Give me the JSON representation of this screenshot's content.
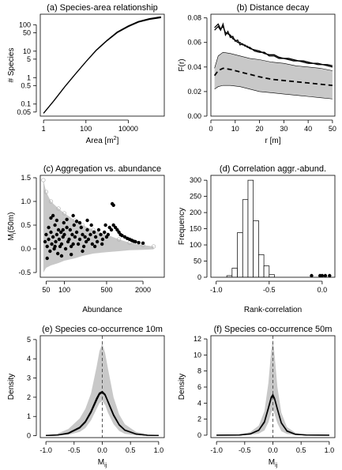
{
  "chart_data": [
    {
      "id": "a",
      "type": "line",
      "title": "(a) Species-area relationship",
      "xlabel": "Area",
      "xlabel_unit": "[m",
      "xlabel_sup": "2",
      "xlabel_close": "]",
      "ylabel": "# Species",
      "xscale": "log",
      "yscale": "log",
      "xlim": [
        0.7,
        500000
      ],
      "ylim": [
        0.035,
        250
      ],
      "xticks": [
        1,
        100,
        10000
      ],
      "xtick_labels": [
        "1",
        "100",
        "10000"
      ],
      "yticks": [
        0.05,
        0.1,
        0.5,
        1,
        5,
        10,
        50,
        100
      ],
      "ytick_labels": [
        "0.05",
        "0.1",
        "0.5",
        "1",
        "5",
        "10",
        "50",
        "100"
      ],
      "series": [
        {
          "x": [
            1,
            3,
            10,
            30,
            100,
            300,
            1000,
            3000,
            10000,
            30000,
            100000,
            350000
          ],
          "y": [
            0.045,
            0.13,
            0.45,
            1.3,
            4.0,
            10.5,
            25,
            50,
            85,
            125,
            160,
            185
          ]
        },
        {
          "x": [
            1,
            3,
            10,
            30,
            100,
            300,
            1000,
            3000,
            10000,
            30000,
            100000,
            350000
          ],
          "y": [
            0.045,
            0.13,
            0.45,
            1.3,
            4.0,
            10.8,
            26,
            53,
            90,
            133,
            170,
            200
          ]
        }
      ]
    },
    {
      "id": "b",
      "type": "line",
      "title": "(b) Distance decay",
      "xlabel": "r  [m]",
      "ylabel": "F(r)",
      "xlim": [
        0,
        51
      ],
      "ylim": [
        0,
        0.083
      ],
      "xticks": [
        0,
        10,
        20,
        30,
        40,
        50
      ],
      "xtick_labels": [
        "0",
        "10",
        "20",
        "30",
        "40",
        "50"
      ],
      "yticks": [
        0,
        0.02,
        0.04,
        0.06,
        0.08
      ],
      "ytick_labels": [
        "0.00",
        "0.02",
        "0.04",
        "0.06",
        "0.08"
      ],
      "envelope": {
        "x": [
          1.5,
          3,
          5,
          8,
          12,
          16,
          20,
          25,
          30,
          35,
          40,
          45,
          50
        ],
        "upper": [
          0.039,
          0.049,
          0.052,
          0.051,
          0.049,
          0.047,
          0.046,
          0.044,
          0.043,
          0.041,
          0.04,
          0.039,
          0.037
        ],
        "lower": [
          0.022,
          0.024,
          0.025,
          0.025,
          0.024,
          0.022,
          0.02,
          0.019,
          0.018,
          0.017,
          0.016,
          0.015,
          0.014
        ]
      },
      "series": [
        {
          "style": "solid",
          "x": [
            1.5,
            3,
            4,
            5,
            6,
            7,
            8,
            9,
            10,
            11,
            12,
            13,
            14,
            15,
            16,
            18,
            20,
            22,
            24,
            26,
            28,
            30,
            32,
            34,
            36,
            38,
            40,
            42,
            44,
            46,
            48,
            50
          ],
          "y": [
            0.07,
            0.073,
            0.07,
            0.075,
            0.066,
            0.069,
            0.064,
            0.065,
            0.061,
            0.062,
            0.058,
            0.059,
            0.057,
            0.057,
            0.055,
            0.054,
            0.053,
            0.051,
            0.05,
            0.05,
            0.048,
            0.047,
            0.047,
            0.046,
            0.045,
            0.045,
            0.044,
            0.043,
            0.043,
            0.042,
            0.042,
            0.041
          ]
        },
        {
          "style": "solid",
          "x": [
            1.5,
            3,
            4,
            5,
            6,
            7,
            8,
            9,
            10,
            11,
            12,
            13,
            14,
            15,
            16,
            18,
            20,
            22,
            24,
            26,
            28,
            30,
            32,
            34,
            36,
            38,
            40,
            42,
            44,
            46,
            48,
            50
          ],
          "y": [
            0.072,
            0.075,
            0.071,
            0.073,
            0.068,
            0.067,
            0.066,
            0.063,
            0.062,
            0.06,
            0.06,
            0.058,
            0.058,
            0.056,
            0.056,
            0.053,
            0.052,
            0.052,
            0.049,
            0.049,
            0.047,
            0.047,
            0.046,
            0.045,
            0.045,
            0.044,
            0.043,
            0.043,
            0.042,
            0.042,
            0.041,
            0.04
          ]
        },
        {
          "style": "dashed",
          "x": [
            1.5,
            3,
            5,
            8,
            12,
            16,
            20,
            25,
            30,
            35,
            40,
            45,
            50
          ],
          "y": [
            0.033,
            0.037,
            0.039,
            0.038,
            0.036,
            0.034,
            0.032,
            0.03,
            0.029,
            0.028,
            0.027,
            0.026,
            0.025
          ]
        }
      ]
    },
    {
      "id": "c",
      "type": "scatter",
      "title": "(c) Aggregation vs. abundance",
      "xlabel": "Abundance",
      "ylabel": "M",
      "ylabel_sub": "i",
      "ylabel_rest": "(50m)",
      "xscale": "log",
      "xlim": [
        40,
        4500
      ],
      "ylim": [
        -0.6,
        1.55
      ],
      "xticks": [
        50,
        100,
        500,
        2000
      ],
      "xtick_labels": [
        "50",
        "100",
        "500",
        "2000"
      ],
      "yticks": [
        -0.5,
        0,
        0.5,
        1,
        1.5
      ],
      "ytick_labels": [
        "-0.5",
        "0.0",
        "0.5",
        "1.0",
        "1.5"
      ],
      "gray_cloud": {
        "x": [
          45,
          50,
          60,
          80,
          100,
          150,
          200,
          300,
          500,
          800,
          1200,
          2000,
          3000
        ],
        "upper": [
          1.45,
          1.2,
          1.0,
          0.85,
          0.75,
          0.6,
          0.5,
          0.4,
          0.3,
          0.2,
          0.13,
          0.08,
          0.05
        ],
        "lower": [
          -0.5,
          -0.4,
          -0.35,
          -0.3,
          -0.25,
          -0.2,
          -0.15,
          -0.1,
          -0.07,
          -0.05,
          -0.03,
          -0.02,
          -0.01
        ]
      },
      "points": [
        [
          48,
          0.15
        ],
        [
          50,
          0.3
        ],
        [
          52,
          0.05
        ],
        [
          55,
          0.45
        ],
        [
          55,
          0.2
        ],
        [
          58,
          -0.05
        ],
        [
          60,
          0.35
        ],
        [
          62,
          0.1
        ],
        [
          65,
          0.25
        ],
        [
          68,
          0.0
        ],
        [
          70,
          0.5
        ],
        [
          72,
          0.15
        ],
        [
          75,
          0.3
        ],
        [
          78,
          -0.1
        ],
        [
          80,
          0.4
        ],
        [
          82,
          0.2
        ],
        [
          85,
          0.05
        ],
        [
          88,
          0.35
        ],
        [
          90,
          0.1
        ],
        [
          95,
          0.25
        ],
        [
          98,
          0.55
        ],
        [
          100,
          0.3
        ],
        [
          105,
          0.0
        ],
        [
          110,
          0.45
        ],
        [
          115,
          0.15
        ],
        [
          120,
          0.2
        ],
        [
          125,
          0.4
        ],
        [
          130,
          0.05
        ],
        [
          135,
          0.3
        ],
        [
          140,
          0.1
        ],
        [
          145,
          0.5
        ],
        [
          150,
          0.25
        ],
        [
          160,
          0.35
        ],
        [
          170,
          0.1
        ],
        [
          180,
          0.2
        ],
        [
          190,
          0.45
        ],
        [
          200,
          0.3
        ],
        [
          210,
          0.05
        ],
        [
          220,
          0.25
        ],
        [
          230,
          0.15
        ],
        [
          240,
          0.4
        ],
        [
          250,
          0.2
        ],
        [
          270,
          0.3
        ],
        [
          290,
          0.1
        ],
        [
          310,
          0.35
        ],
        [
          330,
          0.25
        ],
        [
          350,
          0.15
        ],
        [
          370,
          0.4
        ],
        [
          400,
          0.3
        ],
        [
          430,
          0.2
        ],
        [
          460,
          0.35
        ],
        [
          500,
          0.25
        ],
        [
          530,
          0.3
        ],
        [
          560,
          0.45
        ],
        [
          600,
          0.4
        ],
        [
          650,
          0.5
        ],
        [
          700,
          0.45
        ],
        [
          750,
          0.4
        ],
        [
          800,
          0.35
        ],
        [
          850,
          0.3
        ],
        [
          900,
          0.28
        ],
        [
          1000,
          0.25
        ],
        [
          1100,
          0.22
        ],
        [
          1200,
          0.2
        ],
        [
          1300,
          0.18
        ],
        [
          1400,
          0.16
        ],
        [
          1500,
          0.15
        ],
        [
          1700,
          0.13
        ],
        [
          2000,
          0.12
        ],
        [
          620,
          0.95
        ],
        [
          650,
          0.92
        ],
        [
          75,
          0.6
        ],
        [
          110,
          0.62
        ],
        [
          160,
          0.58
        ],
        [
          60,
          0.65
        ],
        [
          90,
          -0.15
        ],
        [
          130,
          -0.12
        ],
        [
          200,
          -0.05
        ],
        [
          52,
          -0.2
        ],
        [
          65,
          0.7
        ],
        [
          180,
          0.55
        ],
        [
          280,
          0.5
        ],
        [
          140,
          0.7
        ],
        [
          95,
          0.4
        ],
        [
          70,
          0.05
        ],
        [
          240,
          0.6
        ],
        [
          320,
          0.05
        ],
        [
          420,
          0.1
        ],
        [
          480,
          0.5
        ]
      ]
    },
    {
      "id": "d",
      "type": "bar",
      "title": "(d) Correlation aggr.-abund.",
      "xlabel": "Rank-correlation",
      "ylabel": "Frequency",
      "xlim": [
        -1.05,
        0.12
      ],
      "ylim": [
        0,
        315
      ],
      "xticks": [
        -1.0,
        -0.5,
        0.0
      ],
      "xtick_labels": [
        "-1.0",
        "-0.5",
        "0.0"
      ],
      "yticks": [
        0,
        50,
        100,
        150,
        200,
        250,
        300
      ],
      "ytick_labels": [
        "0",
        "50",
        "100",
        "150",
        "200",
        "250",
        "300"
      ],
      "bins": [
        {
          "x0": -0.9,
          "x1": -0.85,
          "value": 5
        },
        {
          "x0": -0.85,
          "x1": -0.8,
          "value": 28
        },
        {
          "x0": -0.8,
          "x1": -0.75,
          "value": 138
        },
        {
          "x0": -0.75,
          "x1": -0.7,
          "value": 240
        },
        {
          "x0": -0.7,
          "x1": -0.65,
          "value": 300
        },
        {
          "x0": -0.65,
          "x1": -0.6,
          "value": 175
        },
        {
          "x0": -0.6,
          "x1": -0.55,
          "value": 70
        },
        {
          "x0": -0.55,
          "x1": -0.5,
          "value": 35
        },
        {
          "x0": -0.5,
          "x1": -0.45,
          "value": 8
        }
      ],
      "points_x": [
        -0.1,
        -0.02,
        0.0,
        0.03,
        0.07
      ]
    },
    {
      "id": "e",
      "type": "line",
      "title": "(e) Species co-occurrence 10m",
      "xlabel": "M",
      "xlabel_sub": "ij",
      "ylabel": "Density",
      "xlim": [
        -1.1,
        1.1
      ],
      "ylim": [
        -0.1,
        5.2
      ],
      "xticks": [
        -1.0,
        -0.5,
        0.0,
        0.5,
        1.0
      ],
      "xtick_labels": [
        "-1.0",
        "-0.5",
        "0.0",
        "0.5",
        "1.0"
      ],
      "yticks": [
        0,
        1,
        2,
        3,
        4,
        5
      ],
      "ytick_labels": [
        "0",
        "1",
        "2",
        "3",
        "4",
        "5"
      ],
      "vline_x": 0,
      "gray_band": {
        "x": [
          -1.0,
          -0.8,
          -0.6,
          -0.4,
          -0.3,
          -0.2,
          -0.1,
          -0.05,
          0.0,
          0.05,
          0.1,
          0.2,
          0.3,
          0.4,
          0.6,
          0.8,
          1.0
        ],
        "upper": [
          0.05,
          0.1,
          0.35,
          0.9,
          1.4,
          2.2,
          3.6,
          4.4,
          4.8,
          4.3,
          3.5,
          2.0,
          1.1,
          0.6,
          0.2,
          0.08,
          0.03
        ],
        "lower": [
          0.0,
          0.0,
          0.05,
          0.2,
          0.4,
          0.8,
          1.4,
          1.7,
          1.8,
          1.6,
          1.2,
          0.6,
          0.25,
          0.1,
          0.02,
          0.0,
          0.0
        ]
      },
      "series": [
        {
          "x": [
            -1.0,
            -0.8,
            -0.6,
            -0.4,
            -0.3,
            -0.2,
            -0.1,
            -0.05,
            0.0,
            0.05,
            0.1,
            0.2,
            0.3,
            0.4,
            0.6,
            0.8,
            1.0
          ],
          "y": [
            0.01,
            0.03,
            0.12,
            0.4,
            0.7,
            1.2,
            1.85,
            2.15,
            2.25,
            2.1,
            1.75,
            1.05,
            0.55,
            0.28,
            0.08,
            0.02,
            0.01
          ]
        },
        {
          "x": [
            -1.0,
            -0.8,
            -0.6,
            -0.4,
            -0.3,
            -0.2,
            -0.1,
            -0.05,
            0.0,
            0.05,
            0.1,
            0.2,
            0.3,
            0.4,
            0.6,
            0.8,
            1.0
          ],
          "y": [
            0.01,
            0.03,
            0.14,
            0.44,
            0.75,
            1.28,
            1.95,
            2.22,
            2.3,
            2.15,
            1.8,
            1.1,
            0.58,
            0.3,
            0.09,
            0.02,
            0.01
          ]
        }
      ]
    },
    {
      "id": "f",
      "type": "line",
      "title": "(f) Species co-occurrence 50m",
      "xlabel": "M",
      "xlabel_sub": "ij",
      "ylabel": "Density",
      "xlim": [
        -1.1,
        1.1
      ],
      "ylim": [
        -0.3,
        12.4
      ],
      "xticks": [
        -1.0,
        -0.5,
        0.0,
        0.5,
        1.0
      ],
      "xtick_labels": [
        "-1.0",
        "-0.5",
        "0.0",
        "0.5",
        "1.0"
      ],
      "yticks": [
        0,
        2,
        4,
        6,
        8,
        10,
        12
      ],
      "ytick_labels": [
        "0",
        "2",
        "4",
        "6",
        "8",
        "10",
        "12"
      ],
      "vline_x": 0,
      "gray_band": {
        "x": [
          -1.0,
          -0.6,
          -0.4,
          -0.25,
          -0.15,
          -0.08,
          -0.03,
          0.0,
          0.03,
          0.08,
          0.15,
          0.25,
          0.4,
          0.6,
          1.0
        ],
        "upper": [
          0.0,
          0.1,
          0.4,
          1.2,
          3.0,
          6.5,
          10.5,
          12.0,
          10.0,
          6.0,
          2.8,
          1.0,
          0.3,
          0.05,
          0.0
        ],
        "lower": [
          0.0,
          0.0,
          0.05,
          0.2,
          0.6,
          1.6,
          2.8,
          3.2,
          2.6,
          1.5,
          0.5,
          0.15,
          0.02,
          0.0,
          0.0
        ]
      },
      "series": [
        {
          "x": [
            -1.0,
            -0.6,
            -0.4,
            -0.25,
            -0.15,
            -0.08,
            -0.03,
            0.0,
            0.03,
            0.08,
            0.15,
            0.25,
            0.4,
            0.6,
            1.0
          ],
          "y": [
            0.0,
            0.02,
            0.15,
            0.6,
            1.6,
            3.3,
            4.6,
            4.9,
            4.5,
            3.2,
            1.5,
            0.5,
            0.1,
            0.02,
            0.0
          ]
        },
        {
          "x": [
            -1.0,
            -0.6,
            -0.4,
            -0.25,
            -0.15,
            -0.08,
            -0.03,
            0.0,
            0.03,
            0.08,
            0.15,
            0.25,
            0.4,
            0.6,
            1.0
          ],
          "y": [
            0.0,
            0.02,
            0.17,
            0.65,
            1.7,
            3.45,
            4.75,
            5.05,
            4.6,
            3.3,
            1.55,
            0.55,
            0.12,
            0.02,
            0.0
          ]
        }
      ]
    }
  ],
  "colors": {
    "line": "#000000",
    "gray_fill": "#c8c8c8",
    "gray_cloud": "#c8c8c8",
    "bar_fill": "#ffffff"
  }
}
